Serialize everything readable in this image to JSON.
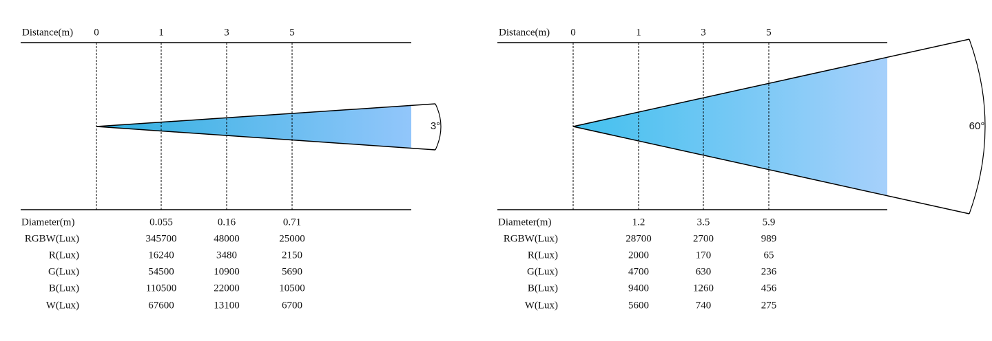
{
  "panels": [
    {
      "distance_label": "Distance(m)",
      "distances": [
        "0",
        "1",
        "3",
        "5"
      ],
      "angle": "3°",
      "diameter_label": "Diameter(m)",
      "diameters": [
        "0.055",
        "0.16",
        "0.71"
      ],
      "rows": [
        {
          "label": "RGBW(Lux)",
          "values": [
            "345700",
            "48000",
            "25000"
          ]
        },
        {
          "label": "R(Lux)",
          "values": [
            "16240",
            "3480",
            "2150"
          ]
        },
        {
          "label": "G(Lux)",
          "values": [
            "54500",
            "10900",
            "5690"
          ]
        },
        {
          "label": "B(Lux)",
          "values": [
            "110500",
            "22000",
            "10500"
          ]
        },
        {
          "label": "W(Lux)",
          "values": [
            "67600",
            "13100",
            "6700"
          ]
        }
      ]
    },
    {
      "distance_label": "Distance(m)",
      "distances": [
        "0",
        "1",
        "3",
        "5"
      ],
      "angle": "60°",
      "diameter_label": "Diameter(m)",
      "diameters": [
        "1.2",
        "3.5",
        "5.9"
      ],
      "rows": [
        {
          "label": "RGBW(Lux)",
          "values": [
            "28700",
            "2700",
            "989"
          ]
        },
        {
          "label": "R(Lux)",
          "values": [
            "2000",
            "170",
            "65"
          ]
        },
        {
          "label": "G(Lux)",
          "values": [
            "4700",
            "630",
            "236"
          ]
        },
        {
          "label": "B(Lux)",
          "values": [
            "9400",
            "1260",
            "456"
          ]
        },
        {
          "label": "W(Lux)",
          "values": [
            "5600",
            "740",
            "275"
          ]
        }
      ]
    }
  ]
}
